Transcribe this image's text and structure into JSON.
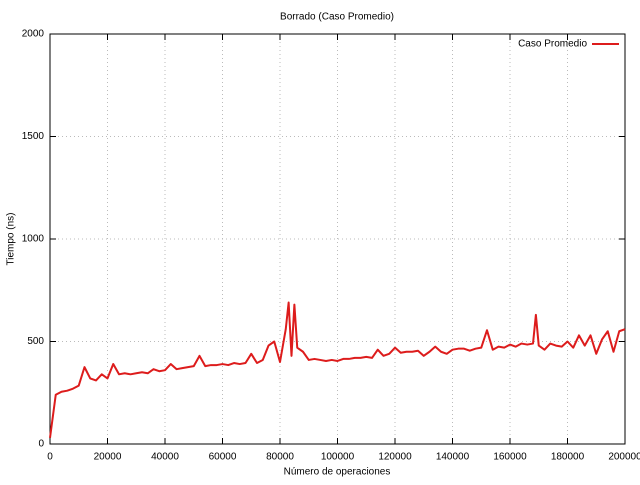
{
  "chart_data": {
    "type": "line",
    "title": "Borrado (Caso Promedio)",
    "xlabel": "Número de operaciones",
    "ylabel": "Tiempo (ns)",
    "x": [
      0,
      2000,
      4000,
      6000,
      8000,
      10000,
      12000,
      14000,
      16000,
      18000,
      20000,
      22000,
      24000,
      26000,
      28000,
      30000,
      32000,
      34000,
      36000,
      38000,
      40000,
      42000,
      44000,
      46000,
      48000,
      50000,
      52000,
      54000,
      56000,
      58000,
      60000,
      62000,
      64000,
      66000,
      68000,
      70000,
      72000,
      74000,
      76000,
      78000,
      80000,
      82000,
      83000,
      84000,
      85000,
      86000,
      88000,
      90000,
      92000,
      94000,
      96000,
      98000,
      100000,
      102000,
      104000,
      106000,
      108000,
      110000,
      112000,
      114000,
      116000,
      118000,
      120000,
      122000,
      124000,
      126000,
      128000,
      130000,
      132000,
      134000,
      136000,
      138000,
      140000,
      142000,
      144000,
      146000,
      148000,
      150000,
      152000,
      154000,
      156000,
      158000,
      160000,
      162000,
      164000,
      166000,
      168000,
      169000,
      170000,
      172000,
      174000,
      176000,
      178000,
      180000,
      182000,
      184000,
      186000,
      188000,
      190000,
      192000,
      194000,
      196000,
      198000,
      200000
    ],
    "series": [
      {
        "name": "Caso Promedio",
        "color": "#dd1c1c",
        "values": [
          30,
          240,
          255,
          260,
          270,
          285,
          375,
          320,
          310,
          340,
          320,
          390,
          340,
          345,
          340,
          345,
          350,
          345,
          365,
          355,
          360,
          390,
          365,
          370,
          375,
          380,
          430,
          380,
          385,
          385,
          390,
          385,
          395,
          390,
          395,
          440,
          395,
          410,
          480,
          500,
          400,
          560,
          690,
          430,
          680,
          470,
          450,
          410,
          415,
          410,
          405,
          410,
          405,
          415,
          415,
          420,
          420,
          425,
          420,
          460,
          430,
          440,
          470,
          445,
          450,
          450,
          455,
          430,
          450,
          475,
          450,
          440,
          460,
          465,
          465,
          455,
          465,
          470,
          555,
          460,
          475,
          470,
          485,
          475,
          490,
          485,
          490,
          630,
          480,
          460,
          490,
          480,
          475,
          500,
          470,
          530,
          480,
          530,
          440,
          510,
          550,
          450,
          550,
          560
        ]
      }
    ],
    "xlim": [
      0,
      200000
    ],
    "xticks": [
      0,
      20000,
      40000,
      60000,
      80000,
      100000,
      120000,
      140000,
      160000,
      180000,
      200000
    ],
    "ylim": [
      0,
      2000
    ],
    "yticks": [
      0,
      500,
      1000,
      1500,
      2000
    ],
    "grid": true,
    "legend": "top-right"
  }
}
